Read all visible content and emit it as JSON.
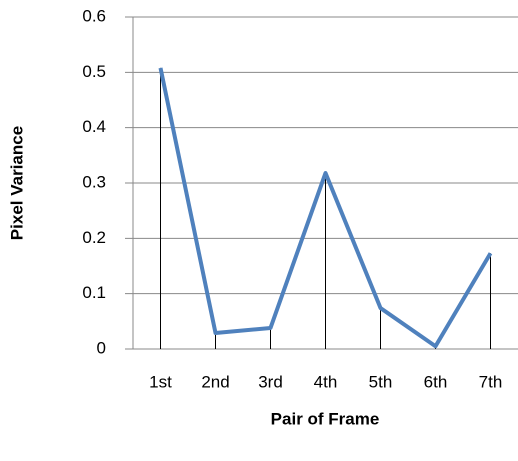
{
  "chart_data": {
    "type": "line",
    "x_label": "Pair of Frame",
    "y_label": "Pixel Variance",
    "categories": [
      "1st",
      "2nd",
      "3rd",
      "4th",
      "5th",
      "6th",
      "7th"
    ],
    "values": [
      0.508,
      0.029,
      0.038,
      0.318,
      0.074,
      0.005,
      0.173
    ],
    "color": "#4f81bd",
    "drop_lines": true,
    "ylim": [
      0,
      0.6
    ],
    "yticks": [
      0,
      0.1,
      0.2,
      0.3,
      0.4,
      0.5,
      0.6
    ],
    "grid": true
  }
}
